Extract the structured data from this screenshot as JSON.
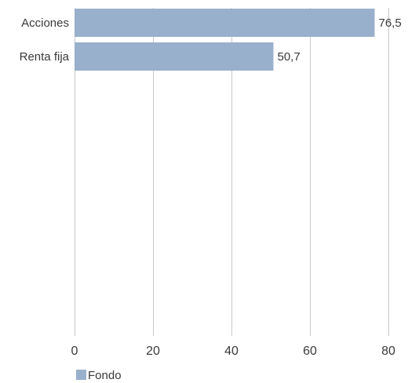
{
  "chart_data": {
    "type": "bar",
    "orientation": "horizontal",
    "categories": [
      "Acciones",
      "Renta fija"
    ],
    "series": [
      {
        "name": "Fondo",
        "values": [
          76.5,
          50.7
        ],
        "labels": [
          "76,5",
          "50,7"
        ],
        "color": "#99b0cc"
      }
    ],
    "xlim": [
      0,
      80
    ],
    "xticks": [
      0,
      20,
      40,
      60,
      80
    ],
    "xtick_labels": [
      "0",
      "20",
      "40",
      "60",
      "80"
    ],
    "grid": true,
    "legend": {
      "placement": "bottom-left"
    },
    "title": "",
    "xlabel": "",
    "ylabel": ""
  }
}
